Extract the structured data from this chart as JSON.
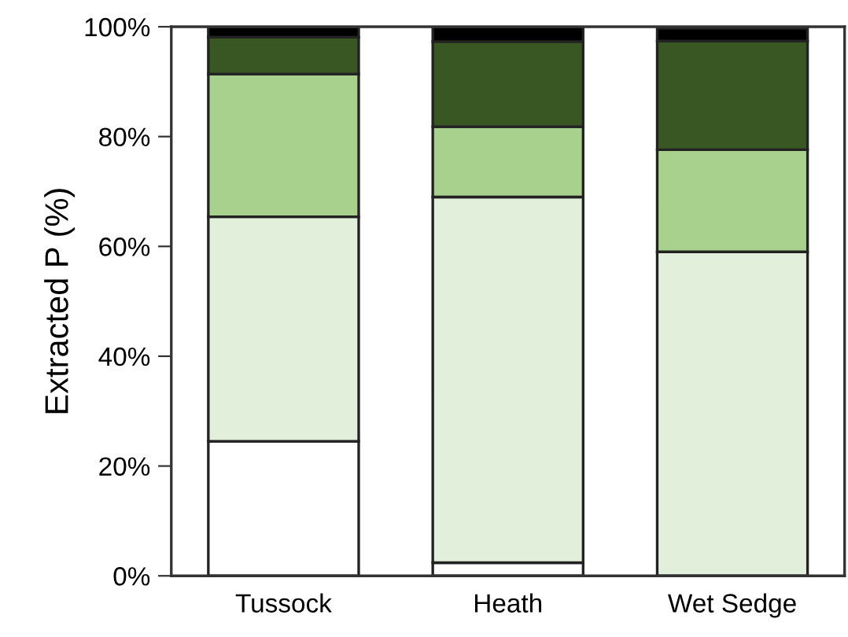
{
  "chart_data": {
    "type": "bar",
    "stacked": true,
    "ylabel": "Extracted P (%)",
    "categories": [
      "Tussock",
      "Heath",
      "Wet Sedge"
    ],
    "series": [
      {
        "color": "#ffffff",
        "values": [
          24.5,
          2.4,
          null
        ]
      },
      {
        "color": "#e2efda",
        "values": [
          40.9,
          66.6,
          59.0
        ]
      },
      {
        "color": "#a9d18e",
        "values": [
          26.0,
          12.8,
          18.6
        ]
      },
      {
        "color": "#385723",
        "values": [
          6.7,
          15.5,
          19.8
        ]
      },
      {
        "color": "#000000",
        "values": [
          1.9,
          2.7,
          2.3
        ]
      }
    ],
    "ylim": [
      0,
      100
    ],
    "yticks": [
      {
        "value": 0,
        "label": "0%"
      },
      {
        "value": 20,
        "label": "20%"
      },
      {
        "value": 40,
        "label": "40%"
      },
      {
        "value": 60,
        "label": "60%"
      },
      {
        "value": 80,
        "label": "80%"
      },
      {
        "value": 100,
        "label": "100%"
      }
    ],
    "grid": false,
    "legend": false
  }
}
